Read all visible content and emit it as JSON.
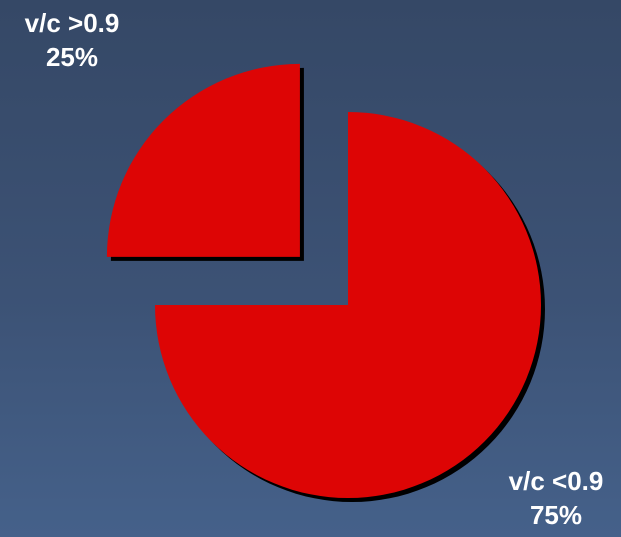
{
  "chart_data": {
    "type": "pie",
    "exploded": true,
    "slices": [
      {
        "label": "v/c >0.9",
        "value": 25,
        "value_label": "25%",
        "color": "#dd0505"
      },
      {
        "label": "v/c <0.9",
        "value": 75,
        "value_label": "75%",
        "color": "#dd0505"
      }
    ],
    "shadow_color": "#000000"
  }
}
